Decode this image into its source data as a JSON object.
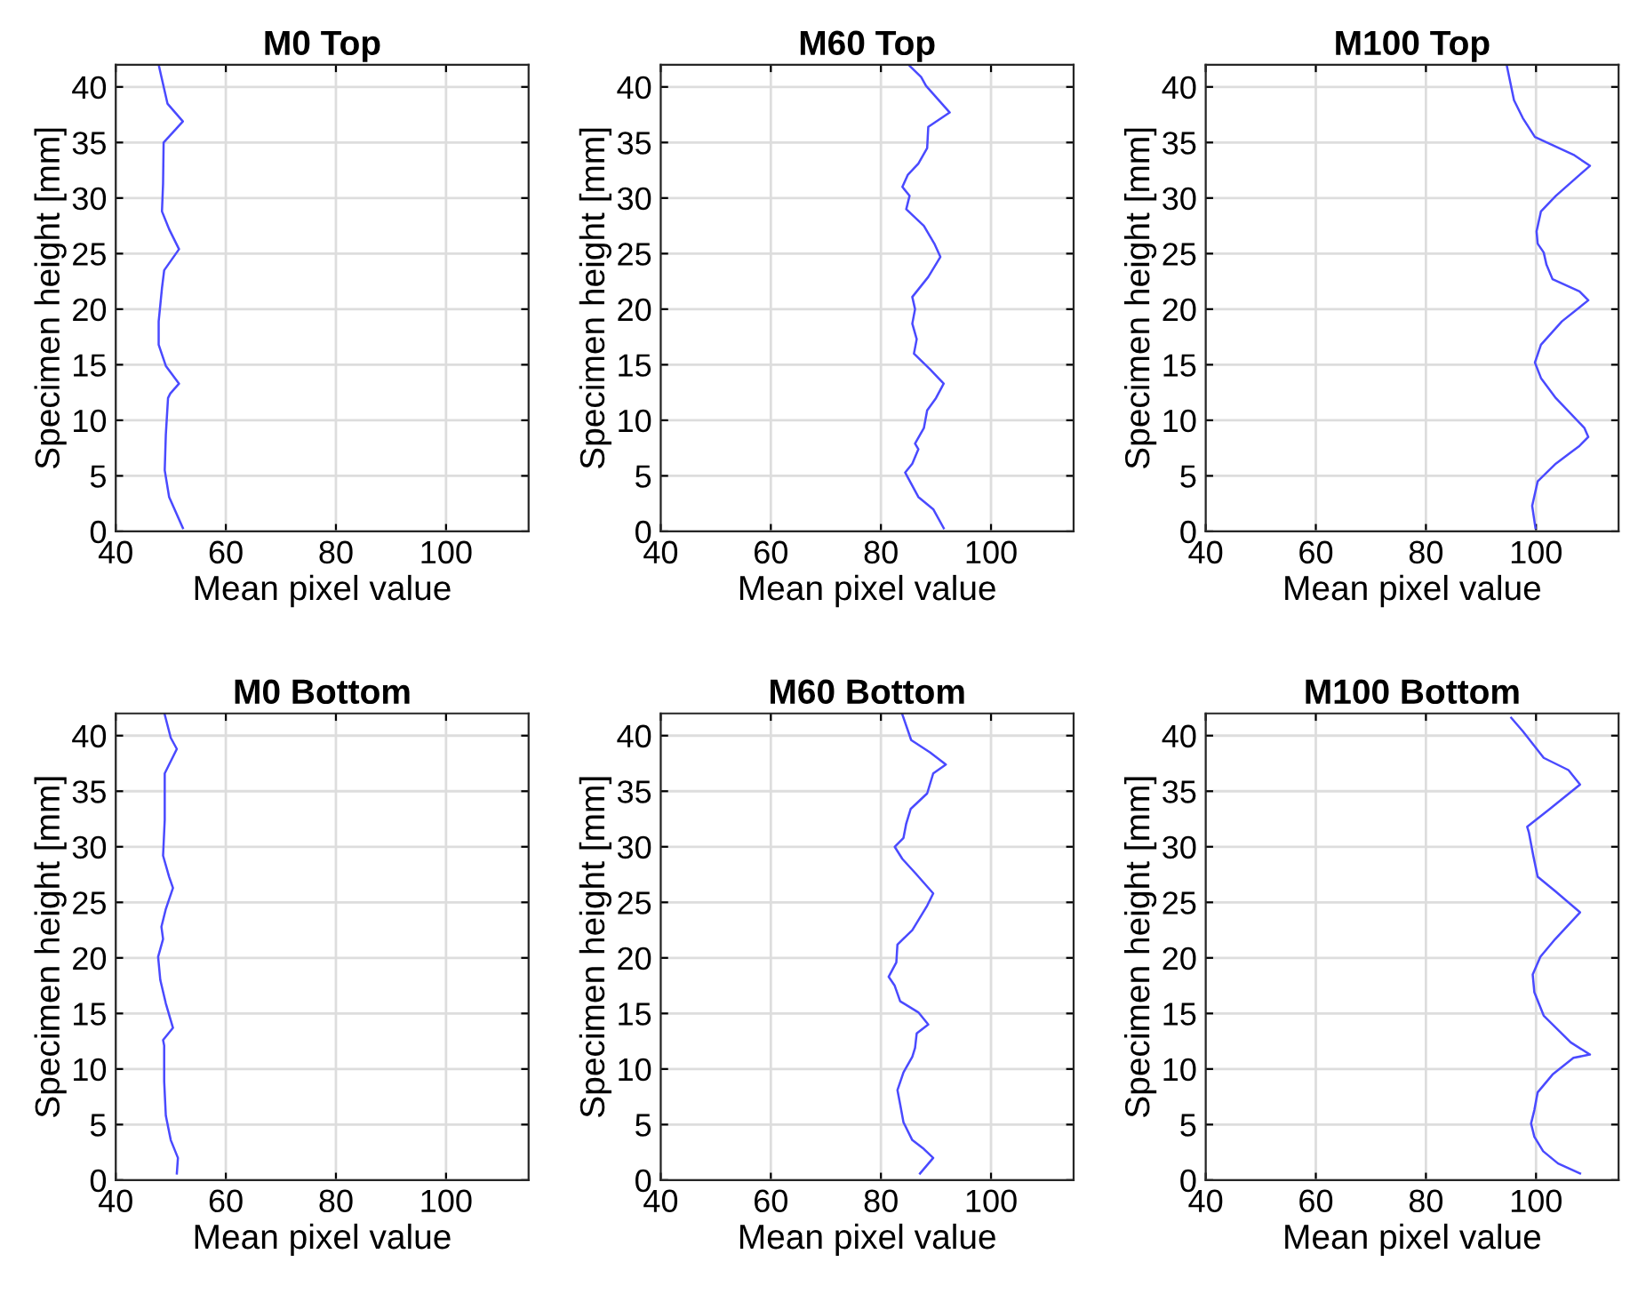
{
  "chart_data": [
    {
      "type": "line",
      "title": "M0 Top",
      "xlabel": "Mean pixel value",
      "ylabel": "Specimen height [mm]",
      "xlim": [
        40,
        115
      ],
      "ylim": [
        0,
        42
      ],
      "xticks": [
        40,
        60,
        80,
        100
      ],
      "yticks": [
        0,
        5,
        10,
        15,
        20,
        25,
        30,
        35,
        40
      ],
      "grid": true,
      "series": [
        {
          "color": "#4a4aff",
          "x": [
            52.2,
            49.7,
            48.9,
            49.1,
            49.5,
            49.9,
            51.5,
            49.1,
            47.8,
            47.8,
            48.4,
            48.8,
            51.5,
            49.7,
            48.4,
            48.6,
            48.7,
            52.2,
            49.4,
            48.3,
            47.8
          ],
          "values": [
            0.3,
            3.1,
            5.5,
            8.7,
            12,
            12.4,
            13.3,
            14.9,
            16.8,
            18.9,
            21.9,
            23.5,
            25.4,
            27.2,
            28.8,
            31.3,
            35,
            36.9,
            38.5,
            40.9,
            42
          ]
        }
      ]
    },
    {
      "type": "line",
      "title": "M60 Top",
      "xlabel": "Mean pixel value",
      "ylabel": "Specimen height [mm]",
      "xlim": [
        40,
        115
      ],
      "ylim": [
        0,
        42
      ],
      "xticks": [
        40,
        60,
        80,
        100
      ],
      "yticks": [
        0,
        5,
        10,
        15,
        20,
        25,
        30,
        35,
        40
      ],
      "grid": true,
      "series": [
        {
          "color": "#4a4aff",
          "x": [
            91.4,
            89.5,
            86.8,
            84.4,
            85.7,
            86.8,
            86.2,
            87.8,
            88.4,
            90,
            91.4,
            88.9,
            86,
            86.5,
            85.7,
            86.2,
            85.7,
            88.6,
            90.8,
            89.7,
            87.8,
            84.6,
            85.2,
            83.9,
            84.9,
            86.8,
            88.4,
            88.6,
            92.5,
            88.2,
            87.3,
            85.2
          ],
          "values": [
            0.3,
            2,
            3.1,
            5.3,
            6.1,
            7.4,
            7.9,
            9.3,
            10.9,
            12,
            13.3,
            14.6,
            16,
            17.3,
            18.7,
            20,
            21.1,
            22.9,
            24.7,
            25.9,
            27.5,
            29,
            30.2,
            31,
            32.1,
            33.1,
            34.5,
            36.4,
            37.7,
            40.1,
            40.9,
            41.9
          ]
        }
      ]
    },
    {
      "type": "line",
      "title": "M100 Top",
      "xlabel": "Mean pixel value",
      "ylabel": "Specimen height [mm]",
      "xlim": [
        40,
        115
      ],
      "ylim": [
        0,
        42
      ],
      "xticks": [
        40,
        60,
        80,
        100
      ],
      "yticks": [
        0,
        5,
        10,
        15,
        20,
        25,
        30,
        35,
        40
      ],
      "grid": true,
      "series": [
        {
          "color": "#4a4aff",
          "x": [
            99.9,
            99.3,
            100.3,
            103.6,
            107.9,
            109.5,
            108.8,
            103.6,
            100.9,
            99.8,
            100.9,
            104.7,
            109.5,
            107.9,
            103,
            101.9,
            101.4,
            100.3,
            100.1,
            100.9,
            103.6,
            109.8,
            106.8,
            99.8,
            97.6,
            96,
            94.7
          ],
          "values": [
            0.3,
            2.3,
            4.5,
            6.1,
            7.7,
            8.5,
            9.3,
            12,
            13.8,
            15.2,
            16.8,
            18.9,
            20.8,
            21.6,
            22.7,
            24,
            25.1,
            25.9,
            27,
            28.8,
            30.2,
            32.9,
            33.9,
            35.5,
            37.2,
            38.8,
            41.9
          ]
        }
      ]
    },
    {
      "type": "line",
      "title": "M0 Bottom",
      "xlabel": "Mean pixel value",
      "ylabel": "Specimen height [mm]",
      "xlim": [
        40,
        115
      ],
      "ylim": [
        0,
        42
      ],
      "xticks": [
        40,
        60,
        80,
        100
      ],
      "yticks": [
        0,
        5,
        10,
        15,
        20,
        25,
        30,
        35,
        40
      ],
      "grid": true,
      "series": [
        {
          "color": "#4a4aff",
          "x": [
            51.1,
            51.3,
            50,
            49.1,
            48.8,
            48.8,
            48.6,
            50.4,
            49.1,
            48.1,
            47.7,
            48.6,
            48.3,
            49.1,
            50.4,
            49.7,
            48.6,
            48.9,
            48.9,
            51.1,
            50,
            48.9
          ],
          "values": [
            0.6,
            2,
            3.6,
            5.8,
            8.9,
            12.1,
            12.6,
            13.7,
            15.9,
            18,
            20.1,
            21.7,
            22.8,
            24.4,
            26.3,
            27.3,
            29.2,
            32.4,
            36.6,
            38.8,
            39.8,
            41.9
          ]
        }
      ]
    },
    {
      "type": "line",
      "title": "M60 Bottom",
      "xlabel": "Mean pixel value",
      "ylabel": "Specimen height [mm]",
      "xlim": [
        40,
        115
      ],
      "ylim": [
        0,
        42
      ],
      "xticks": [
        40,
        60,
        80,
        100
      ],
      "yticks": [
        0,
        5,
        10,
        15,
        20,
        25,
        30,
        35,
        40
      ],
      "grid": true,
      "series": [
        {
          "color": "#4a4aff",
          "x": [
            87.1,
            89.5,
            87.8,
            85.7,
            84.1,
            83.5,
            83,
            84.1,
            85.7,
            86.2,
            86.5,
            88.6,
            86.8,
            83.5,
            82.5,
            81.4,
            82.8,
            83,
            85.7,
            88.4,
            89.5,
            86.3,
            83.9,
            82.5,
            84.1,
            84.6,
            85.4,
            88.4,
            89.5,
            91.8,
            88.9,
            85.5,
            83.9
          ],
          "values": [
            0.6,
            2,
            2.8,
            3.6,
            5.2,
            6.8,
            8.1,
            9.7,
            11.1,
            11.9,
            13.2,
            14,
            15.1,
            16.1,
            17.5,
            18.3,
            19.6,
            21.2,
            22.5,
            24.7,
            25.8,
            27.6,
            28.9,
            30,
            30.8,
            32.1,
            33.4,
            34.8,
            36.6,
            37.4,
            38.5,
            39.6,
            41.9
          ]
        }
      ]
    },
    {
      "type": "line",
      "title": "M100 Bottom",
      "xlabel": "Mean pixel value",
      "ylabel": "Specimen height [mm]",
      "xlim": [
        40,
        115
      ],
      "ylim": [
        0,
        42
      ],
      "xticks": [
        40,
        60,
        80,
        100
      ],
      "yticks": [
        0,
        5,
        10,
        15,
        20,
        25,
        30,
        35,
        40
      ],
      "grid": true,
      "series": [
        {
          "color": "#4a4aff",
          "x": [
            108,
            104,
            101.3,
            99.7,
            99.1,
            99.7,
            100.3,
            103,
            106.8,
            109.8,
            106.3,
            101.4,
            99.7,
            99.4,
            100.8,
            103.5,
            108,
            103.5,
            100.3,
            99.5,
            98.7,
            98.4,
            102.5,
            108,
            105.9,
            101.4,
            97.6,
            95.5
          ],
          "values": [
            0.6,
            1.5,
            2.6,
            3.9,
            5.1,
            6.3,
            7.9,
            9.5,
            11,
            11.3,
            12.4,
            14.8,
            16.9,
            18.5,
            20.1,
            21.7,
            24.1,
            26,
            27.3,
            29.2,
            31.3,
            31.8,
            33.4,
            35.6,
            36.9,
            38,
            40.4,
            41.6
          ]
        }
      ]
    }
  ]
}
